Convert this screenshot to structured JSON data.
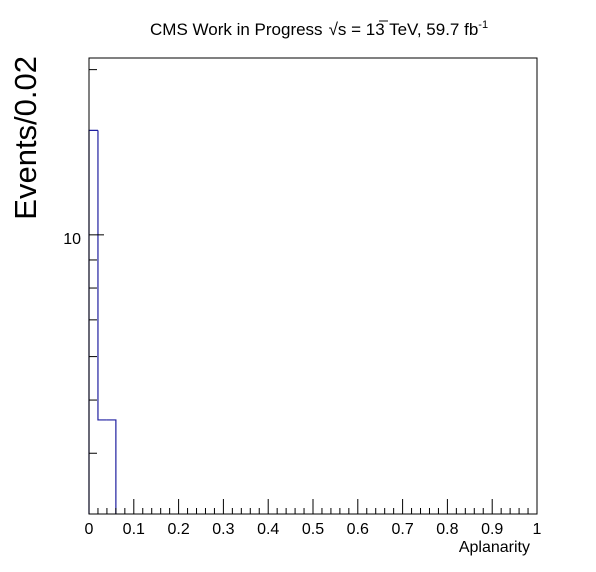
{
  "chart_data": {
    "type": "bar",
    "style": "step-histogram",
    "title": "CMS Work in Progress",
    "title_sqrt_symbol": "√",
    "title_energy_text": "s = 13 TeV, 59.7 fb",
    "title_superscript": "-1",
    "xlabel": "Aplanarity",
    "ylabel": "Events/0.02",
    "xlim": [
      0,
      1
    ],
    "ylim": [
      3.1,
      21
    ],
    "y_scale": "log",
    "bin_width": 0.02,
    "bin_edges": [
      0,
      0.02,
      0.04,
      0.06
    ],
    "values": [
      15.5,
      4.6,
      4.6
    ],
    "series": [
      {
        "name": "",
        "color": "#1f1fa0",
        "values": [
          15.5,
          4.6,
          4.6
        ]
      }
    ],
    "x_ticks": [
      {
        "value": 0,
        "label": "0"
      },
      {
        "value": 0.1,
        "label": "0.1"
      },
      {
        "value": 0.2,
        "label": "0.2"
      },
      {
        "value": 0.3,
        "label": "0.3"
      },
      {
        "value": 0.4,
        "label": "0.4"
      },
      {
        "value": 0.5,
        "label": "0.5"
      },
      {
        "value": 0.6,
        "label": "0.6"
      },
      {
        "value": 0.7,
        "label": "0.7"
      },
      {
        "value": 0.8,
        "label": "0.8"
      },
      {
        "value": 0.9,
        "label": "0.9"
      },
      {
        "value": 1,
        "label": "1"
      }
    ],
    "y_major_ticks": [
      {
        "value": 10,
        "label": "10"
      }
    ],
    "y_minor_ticks": [
      4,
      5,
      6,
      7,
      8,
      9,
      20
    ],
    "grid": false,
    "legend": "none",
    "colors": {
      "line": "#1f1fa0",
      "frame": "#000000"
    }
  }
}
